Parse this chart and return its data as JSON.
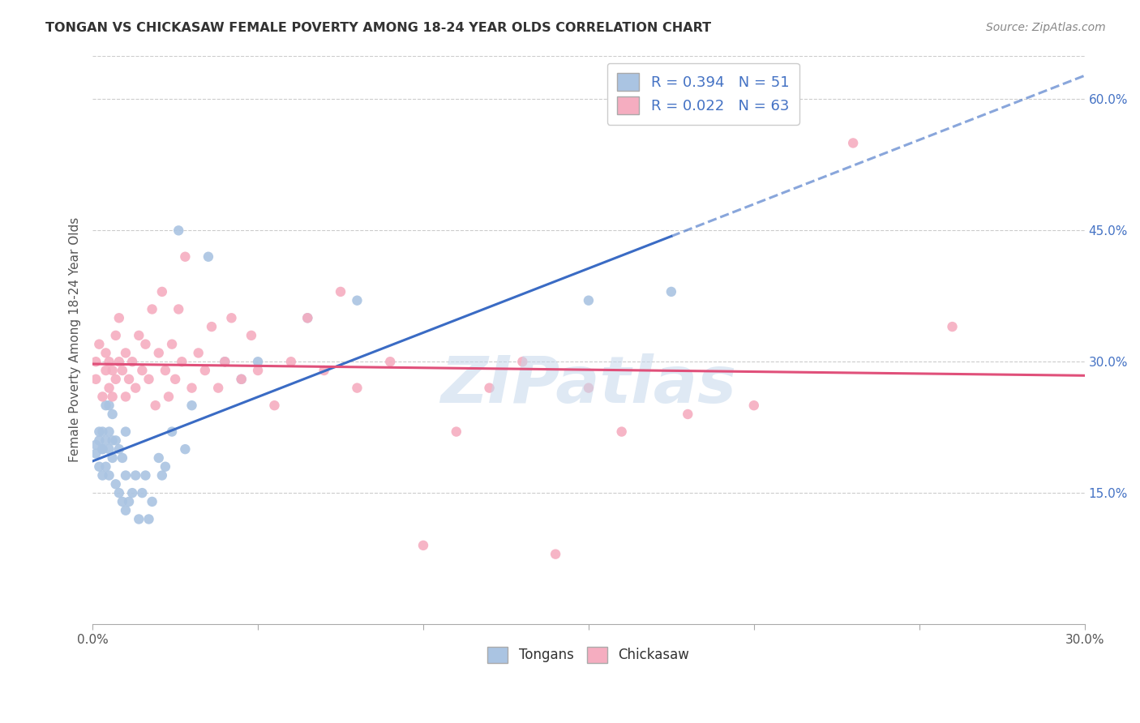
{
  "title": "TONGAN VS CHICKASAW FEMALE POVERTY AMONG 18-24 YEAR OLDS CORRELATION CHART",
  "source": "Source: ZipAtlas.com",
  "ylabel": "Female Poverty Among 18-24 Year Olds",
  "xlim": [
    0.0,
    0.3
  ],
  "ylim": [
    0.0,
    0.65
  ],
  "tongans_R": 0.394,
  "tongans_N": 51,
  "chickasaw_R": 0.022,
  "chickasaw_N": 63,
  "tongans_color": "#aac4e2",
  "chickasaw_color": "#f5adc0",
  "tongans_line_color": "#3a6bc4",
  "chickasaw_line_color": "#e0507a",
  "watermark_text": "ZIPatlas",
  "background_color": "#ffffff",
  "grid_color": "#cccccc",
  "tongans_x": [
    0.001,
    0.001,
    0.002,
    0.002,
    0.002,
    0.003,
    0.003,
    0.003,
    0.003,
    0.004,
    0.004,
    0.004,
    0.005,
    0.005,
    0.005,
    0.005,
    0.006,
    0.006,
    0.006,
    0.007,
    0.007,
    0.008,
    0.008,
    0.009,
    0.009,
    0.01,
    0.01,
    0.01,
    0.011,
    0.012,
    0.013,
    0.014,
    0.015,
    0.016,
    0.017,
    0.018,
    0.02,
    0.021,
    0.022,
    0.024,
    0.026,
    0.028,
    0.03,
    0.035,
    0.04,
    0.045,
    0.05,
    0.065,
    0.08,
    0.15,
    0.175
  ],
  "tongans_y": [
    0.195,
    0.205,
    0.18,
    0.21,
    0.22,
    0.17,
    0.2,
    0.22,
    0.2,
    0.18,
    0.21,
    0.25,
    0.17,
    0.2,
    0.22,
    0.25,
    0.19,
    0.21,
    0.24,
    0.16,
    0.21,
    0.15,
    0.2,
    0.14,
    0.19,
    0.13,
    0.17,
    0.22,
    0.14,
    0.15,
    0.17,
    0.12,
    0.15,
    0.17,
    0.12,
    0.14,
    0.19,
    0.17,
    0.18,
    0.22,
    0.45,
    0.2,
    0.25,
    0.42,
    0.3,
    0.28,
    0.3,
    0.35,
    0.37,
    0.37,
    0.38
  ],
  "chickasaw_x": [
    0.001,
    0.001,
    0.002,
    0.003,
    0.004,
    0.004,
    0.005,
    0.005,
    0.006,
    0.006,
    0.007,
    0.007,
    0.008,
    0.008,
    0.009,
    0.01,
    0.01,
    0.011,
    0.012,
    0.013,
    0.014,
    0.015,
    0.016,
    0.017,
    0.018,
    0.019,
    0.02,
    0.021,
    0.022,
    0.023,
    0.024,
    0.025,
    0.026,
    0.027,
    0.028,
    0.03,
    0.032,
    0.034,
    0.036,
    0.038,
    0.04,
    0.042,
    0.045,
    0.048,
    0.05,
    0.055,
    0.06,
    0.065,
    0.07,
    0.075,
    0.08,
    0.09,
    0.1,
    0.11,
    0.12,
    0.13,
    0.14,
    0.15,
    0.16,
    0.18,
    0.2,
    0.23,
    0.26
  ],
  "chickasaw_y": [
    0.3,
    0.28,
    0.32,
    0.26,
    0.29,
    0.31,
    0.27,
    0.3,
    0.26,
    0.29,
    0.28,
    0.33,
    0.3,
    0.35,
    0.29,
    0.26,
    0.31,
    0.28,
    0.3,
    0.27,
    0.33,
    0.29,
    0.32,
    0.28,
    0.36,
    0.25,
    0.31,
    0.38,
    0.29,
    0.26,
    0.32,
    0.28,
    0.36,
    0.3,
    0.42,
    0.27,
    0.31,
    0.29,
    0.34,
    0.27,
    0.3,
    0.35,
    0.28,
    0.33,
    0.29,
    0.25,
    0.3,
    0.35,
    0.29,
    0.38,
    0.27,
    0.3,
    0.09,
    0.22,
    0.27,
    0.3,
    0.08,
    0.27,
    0.22,
    0.24,
    0.25,
    0.55,
    0.34
  ]
}
